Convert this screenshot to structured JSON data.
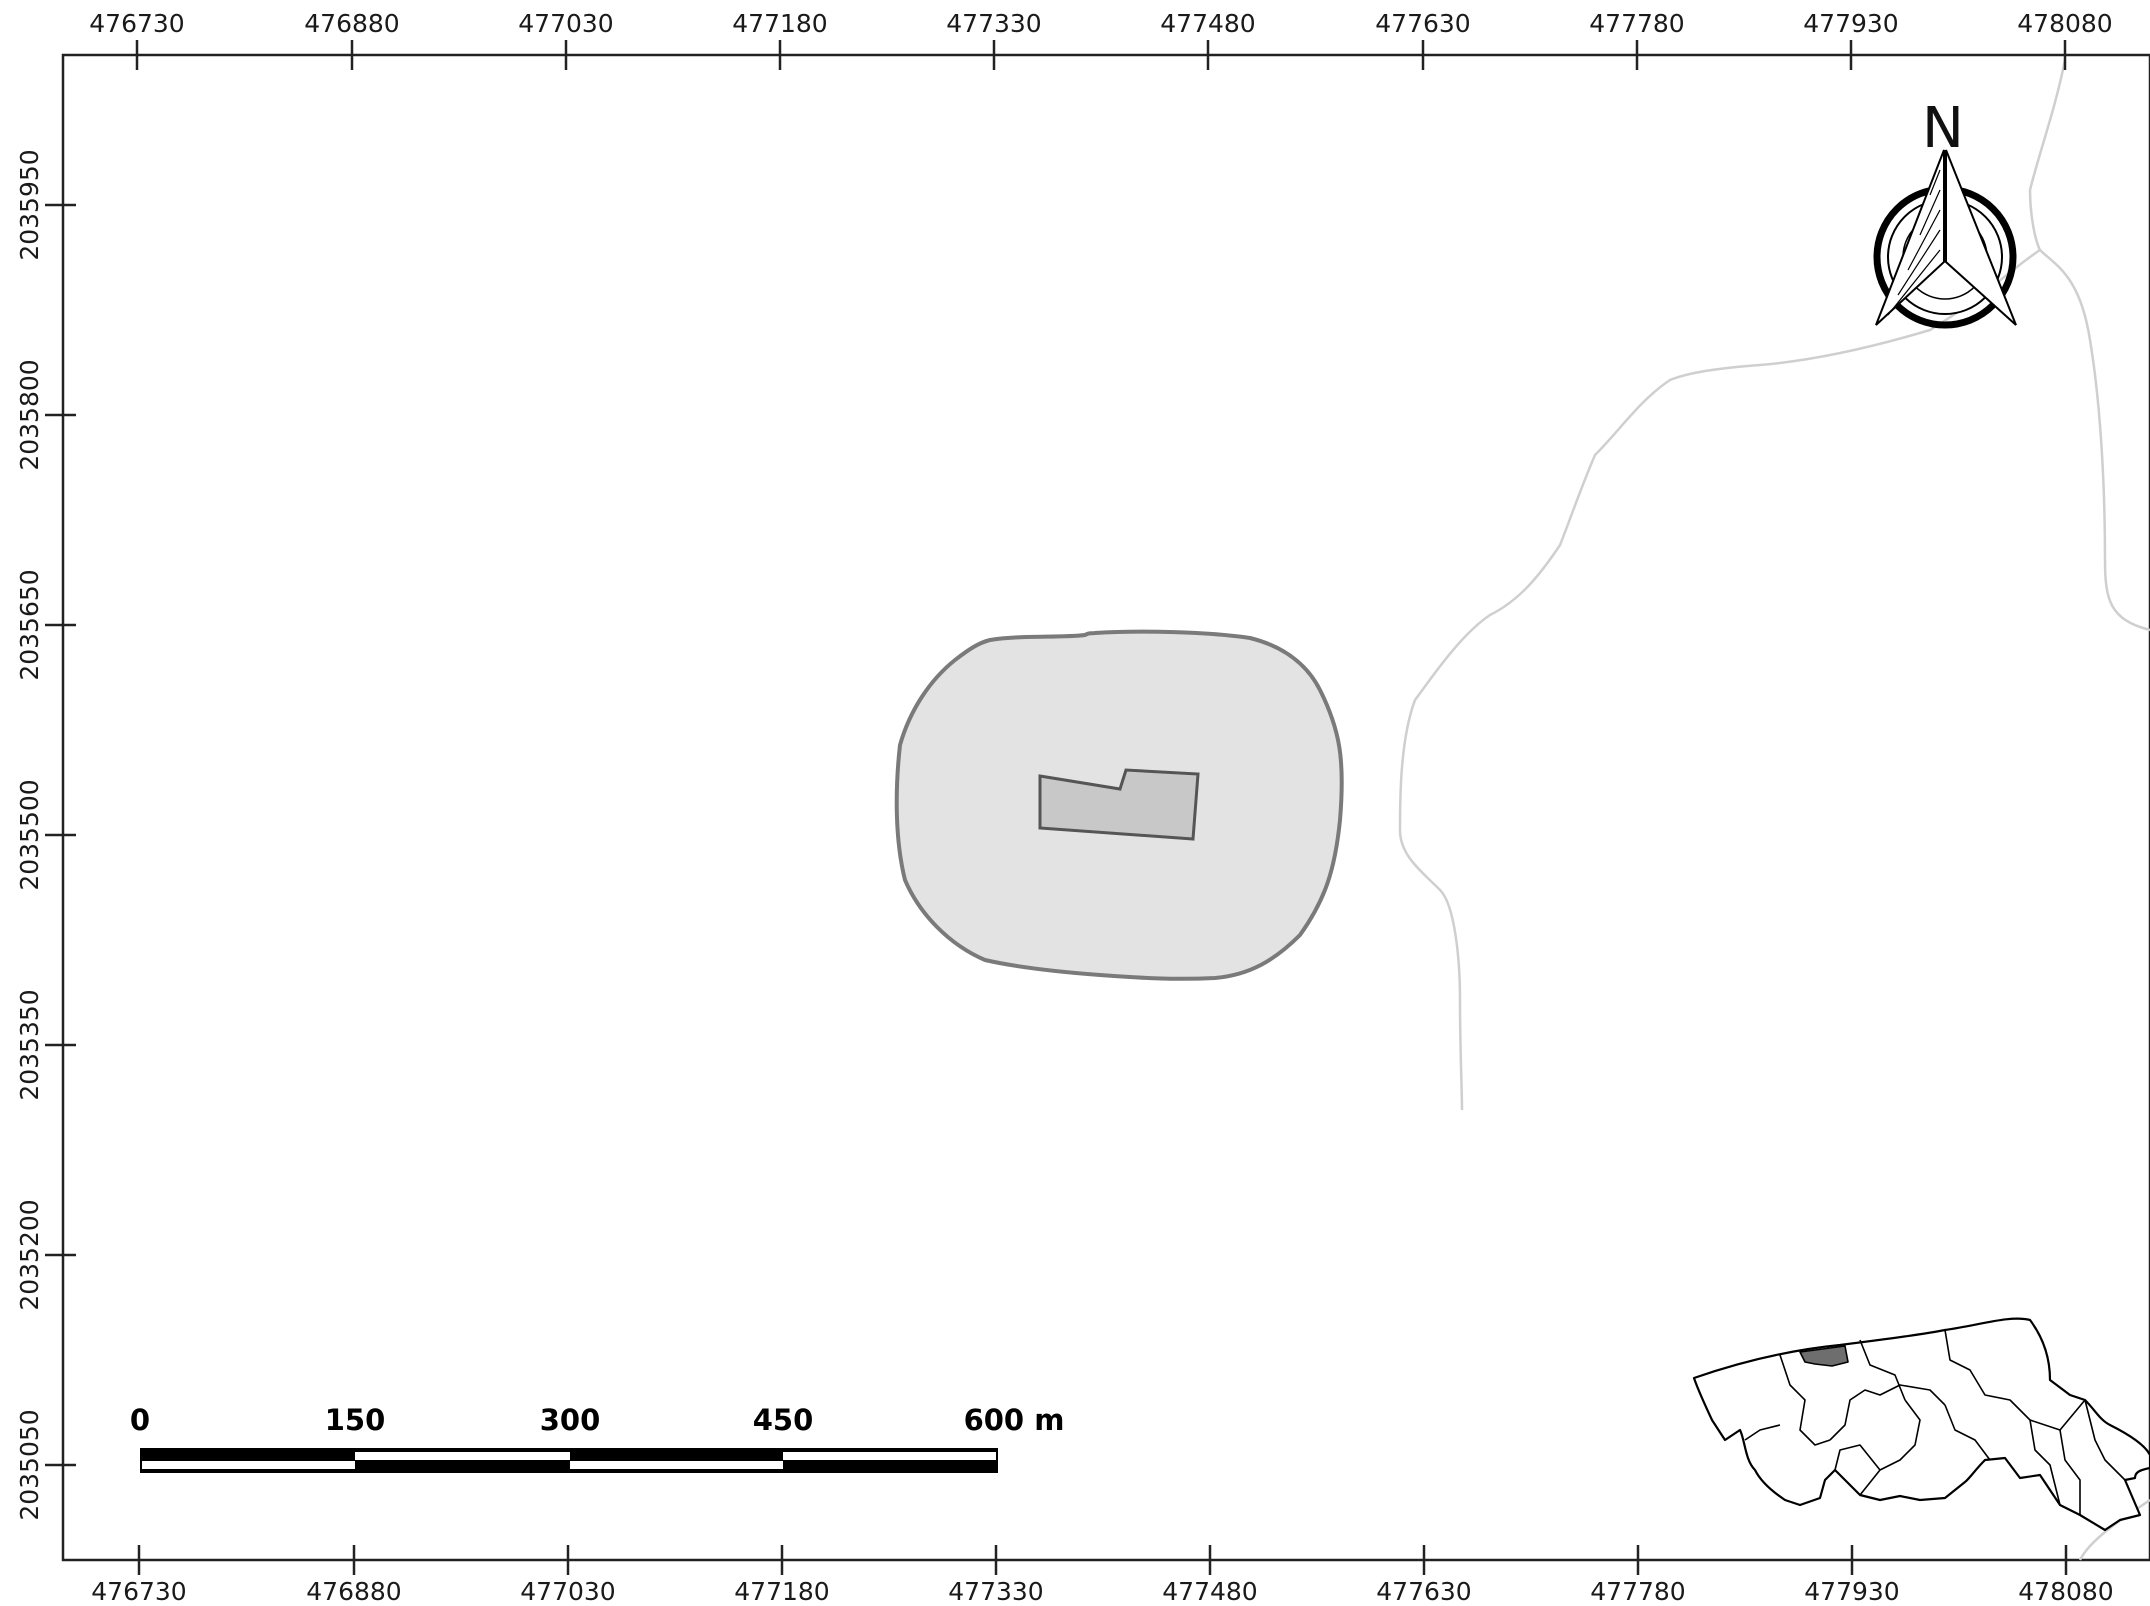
{
  "grid": {
    "x_labels": [
      "476730",
      "476880",
      "477030",
      "477180",
      "477330",
      "477480",
      "477630",
      "477780",
      "477930",
      "478080"
    ],
    "y_labels": [
      "2035950",
      "2035800",
      "2035650",
      "2035500",
      "2035350",
      "2035200",
      "2035050"
    ]
  },
  "scale_bar": {
    "labels": [
      "0",
      "150",
      "300",
      "450",
      "600 m"
    ]
  },
  "north_arrow": {
    "letter": "N",
    "icon": "north-arrow-icon"
  },
  "layers": {
    "buffer_zone": {
      "fill": "#e3e3e3",
      "stroke": "#7a7a7a"
    },
    "site_parcel": {
      "fill": "#c8c8c8",
      "stroke": "#555555"
    },
    "streams": {
      "stroke": "#cfcfcf"
    }
  },
  "inset_map": {
    "icon": "locator-map-icon",
    "highlight": "#6e6e6e"
  }
}
